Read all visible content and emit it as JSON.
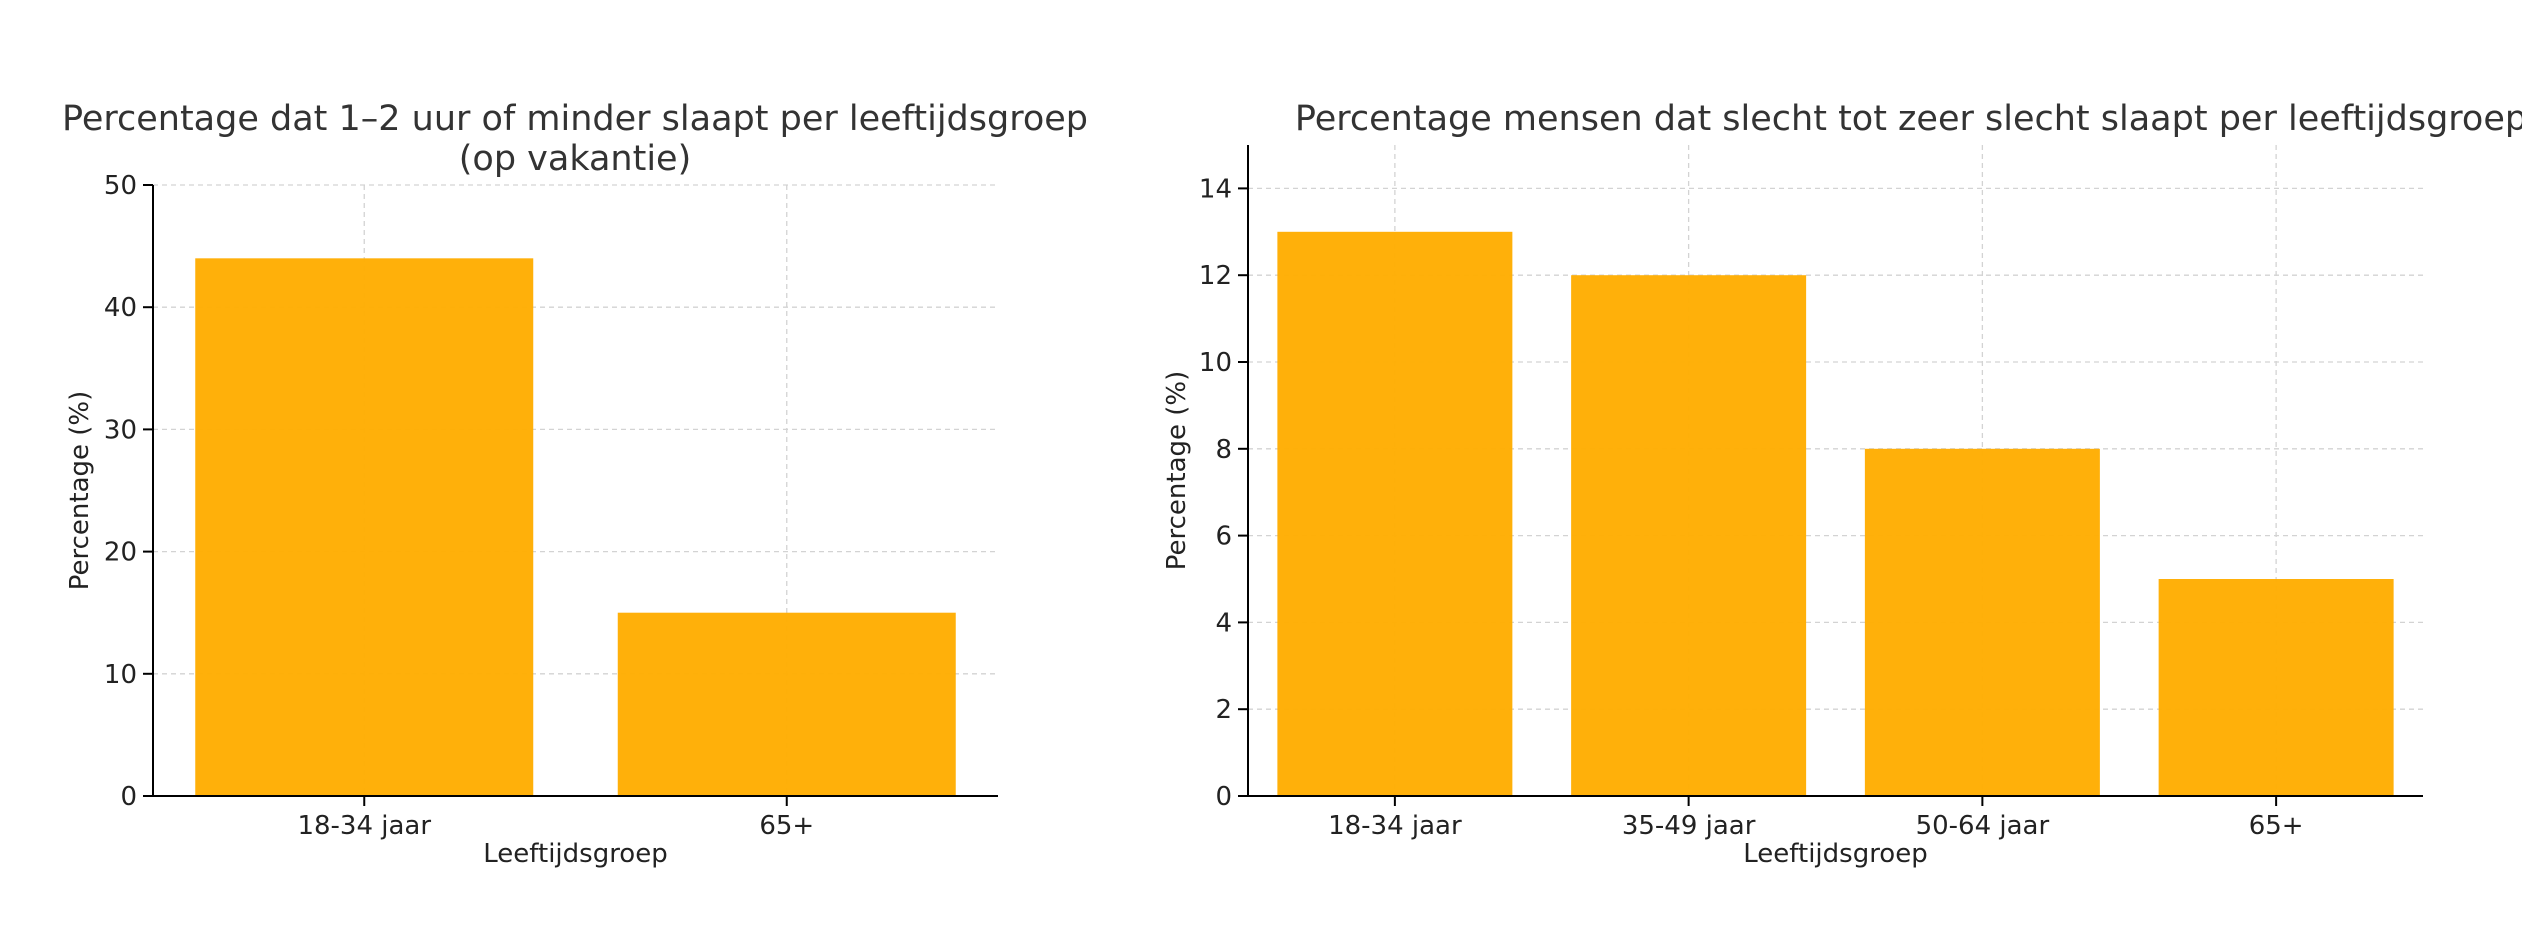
{
  "chart_data": [
    {
      "type": "bar",
      "title_lines": [
        "Percentage dat 1–2 uur of minder slaapt per leeftijdsgroep",
        "(op vakantie)"
      ],
      "xlabel": "Leeftijdsgroep",
      "ylabel": "Percentage (%)",
      "categories": [
        "18-34 jaar",
        "65+"
      ],
      "values": [
        44,
        15
      ],
      "ylim": [
        0,
        50
      ],
      "yticks": [
        0,
        10,
        20,
        30,
        40,
        50
      ],
      "grid": true,
      "bar_color": "#FFAD00"
    },
    {
      "type": "bar",
      "title_lines": [
        "Percentage mensen dat slecht tot zeer slecht slaapt per leeftijdsgroep"
      ],
      "xlabel": "Leeftijdsgroep",
      "ylabel": "Percentage (%)",
      "categories": [
        "18-34 jaar",
        "35-49 jaar",
        "50-64 jaar",
        "65+"
      ],
      "values": [
        13,
        12,
        8,
        5
      ],
      "ylim": [
        0,
        15
      ],
      "yticks": [
        0,
        2,
        4,
        6,
        8,
        10,
        12,
        14
      ],
      "grid": true,
      "bar_color": "#FFAD00"
    }
  ]
}
